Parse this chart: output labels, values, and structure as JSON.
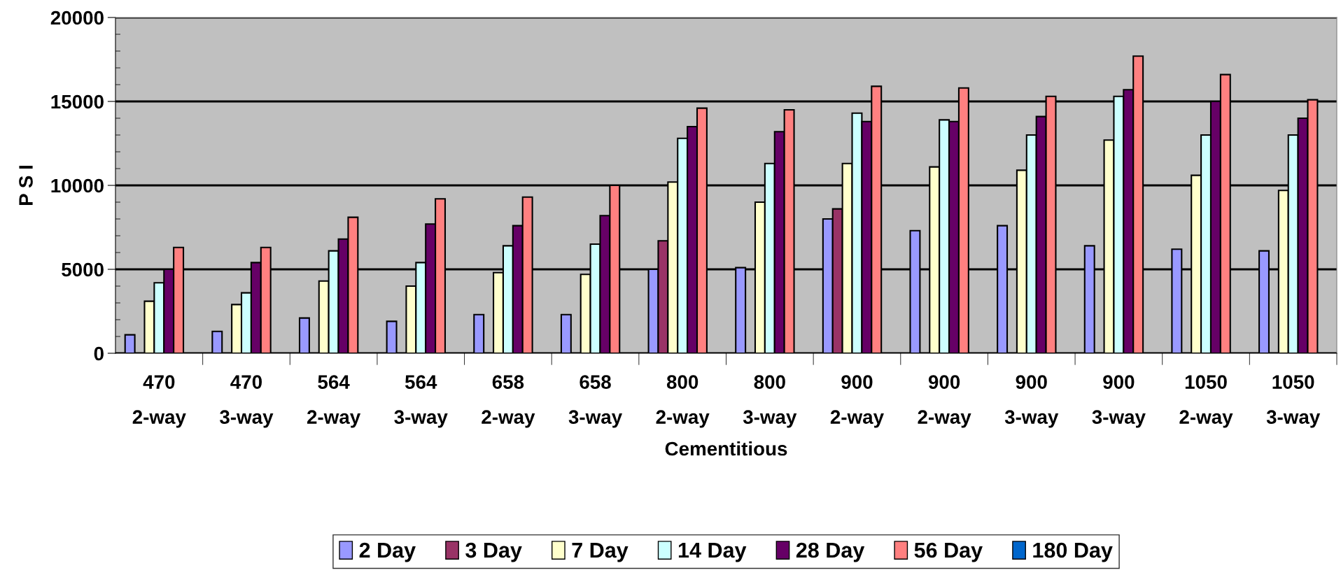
{
  "chart_data": {
    "type": "bar",
    "xlabel": "Cementitious",
    "ylabel": "P S I",
    "categories": [
      "470\n2-way",
      "470\n3-way",
      "564\n2-way",
      "564\n3-way",
      "658\n2-way",
      "658\n3-way",
      "800\n2-way",
      "800\n3-way",
      "900\n2-way",
      "900\n2-way",
      "900\n3-way",
      "900\n3-way",
      "1050\n2-way",
      "1050\n3-way"
    ],
    "series": [
      {
        "name": "2 Day",
        "color": "#9999ff",
        "values": [
          1100,
          1300,
          2100,
          1900,
          2300,
          2300,
          5000,
          5100,
          8000,
          7300,
          7600,
          6400,
          6200,
          6100
        ]
      },
      {
        "name": "3 Day",
        "color": "#993366",
        "values": [
          null,
          null,
          null,
          null,
          null,
          null,
          6700,
          null,
          8600,
          null,
          null,
          null,
          null,
          null
        ]
      },
      {
        "name": "7 Day",
        "color": "#ffffcc",
        "values": [
          3100,
          2900,
          4300,
          4000,
          4800,
          4700,
          10200,
          9000,
          11300,
          11100,
          10900,
          12700,
          10600,
          9700
        ]
      },
      {
        "name": "14 Day",
        "color": "#ccffff",
        "values": [
          4200,
          3600,
          6100,
          5400,
          6400,
          6500,
          12800,
          11300,
          14300,
          13900,
          13000,
          15300,
          13000,
          13000
        ]
      },
      {
        "name": "28 Day",
        "color": "#660066",
        "values": [
          5000,
          5400,
          6800,
          7700,
          7600,
          8200,
          13500,
          13200,
          13800,
          13800,
          14100,
          15700,
          15000,
          14000
        ]
      },
      {
        "name": "56 Day",
        "color": "#ff8080",
        "values": [
          6300,
          6300,
          8100,
          9200,
          9300,
          10000,
          14600,
          14500,
          15900,
          15800,
          15300,
          17700,
          16600,
          15100
        ]
      },
      {
        "name": "180 Day",
        "color": "#0066cc",
        "values": [
          null,
          null,
          null,
          null,
          null,
          null,
          null,
          null,
          null,
          null,
          null,
          null,
          null,
          null
        ]
      }
    ],
    "ylim": [
      0,
      20000
    ],
    "yticks": [
      0,
      5000,
      10000,
      15000,
      20000
    ],
    "grid": "y",
    "legend": "bottom"
  }
}
